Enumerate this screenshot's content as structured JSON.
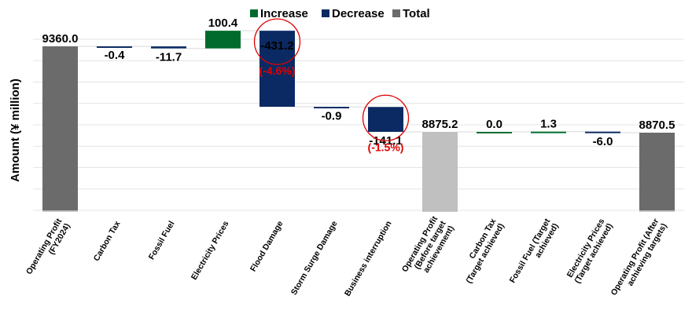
{
  "chart_data": {
    "type": "bar",
    "subtype": "waterfall",
    "ylabel": "Amount (¥ million)",
    "legend": {
      "placement": "top-center",
      "items": [
        {
          "name": "Increase",
          "color": "#006b2d"
        },
        {
          "name": "Decrease",
          "color": "#0b2a63"
        },
        {
          "name": "Total",
          "color": "#6b6b6b"
        }
      ]
    },
    "ylim": [
      8430,
      9400
    ],
    "grid": true,
    "categories": [
      "Operating Profit (FY2024)",
      "Carbon Tax",
      "Fossil Fuel",
      "Electricity Prices",
      "Flood Damage",
      "Storm Surge Damage",
      "Business interruption",
      "Operating Profit (Before target achievement)",
      "Carbon Tax (Target achieved)",
      "Fossil Fuel (Target achieved)",
      "Electricity Prices (Target achieved)",
      "Operating Profit (After achieving targets)"
    ],
    "category_lines": [
      [
        "Operating Profit",
        "(FY2024)"
      ],
      [
        "Carbon Tax"
      ],
      [
        "Fossil Fuel"
      ],
      [
        "Electricity Prices"
      ],
      [
        "Flood Damage"
      ],
      [
        "Storm Surge Damage"
      ],
      [
        "Business interruption"
      ],
      [
        "Operating Profit",
        "(Before target",
        "achievement)"
      ],
      [
        "Carbon Tax",
        "(Target achieved)"
      ],
      [
        "Fossil Fuel (Target",
        "achieved)"
      ],
      [
        "Electricity Prices",
        "(Target achieved)"
      ],
      [
        "Operating Profit (After",
        "achieving targets)"
      ]
    ],
    "values": [
      9360.0,
      -0.4,
      -11.7,
      100.4,
      -431.2,
      -0.9,
      -141.1,
      8875.2,
      0.0,
      1.3,
      -6.0,
      8870.5
    ],
    "value_labels": [
      "9360.0",
      "-0.4",
      "-11.7",
      "100.4",
      "-431.2",
      "-0.9",
      "-141.1",
      "8875.2",
      "0.0",
      "1.3",
      "-6.0",
      "8870.5"
    ],
    "kinds": [
      "total",
      "delta",
      "delta",
      "delta",
      "delta",
      "delta",
      "delta",
      "subtotal",
      "delta",
      "delta",
      "delta",
      "total"
    ],
    "colors": {
      "increase": "#006b2d",
      "decrease": "#0b2a63",
      "total": "#6b6b6b",
      "subtotal": "#c0c0c0"
    },
    "annotations": [
      {
        "category": "Flood Damage",
        "text": "(-4.6%)",
        "color": "#e00000",
        "circled": true
      },
      {
        "category": "Business interruption",
        "text": "(-1.5%)",
        "color": "#e00000",
        "circled": true
      }
    ]
  }
}
